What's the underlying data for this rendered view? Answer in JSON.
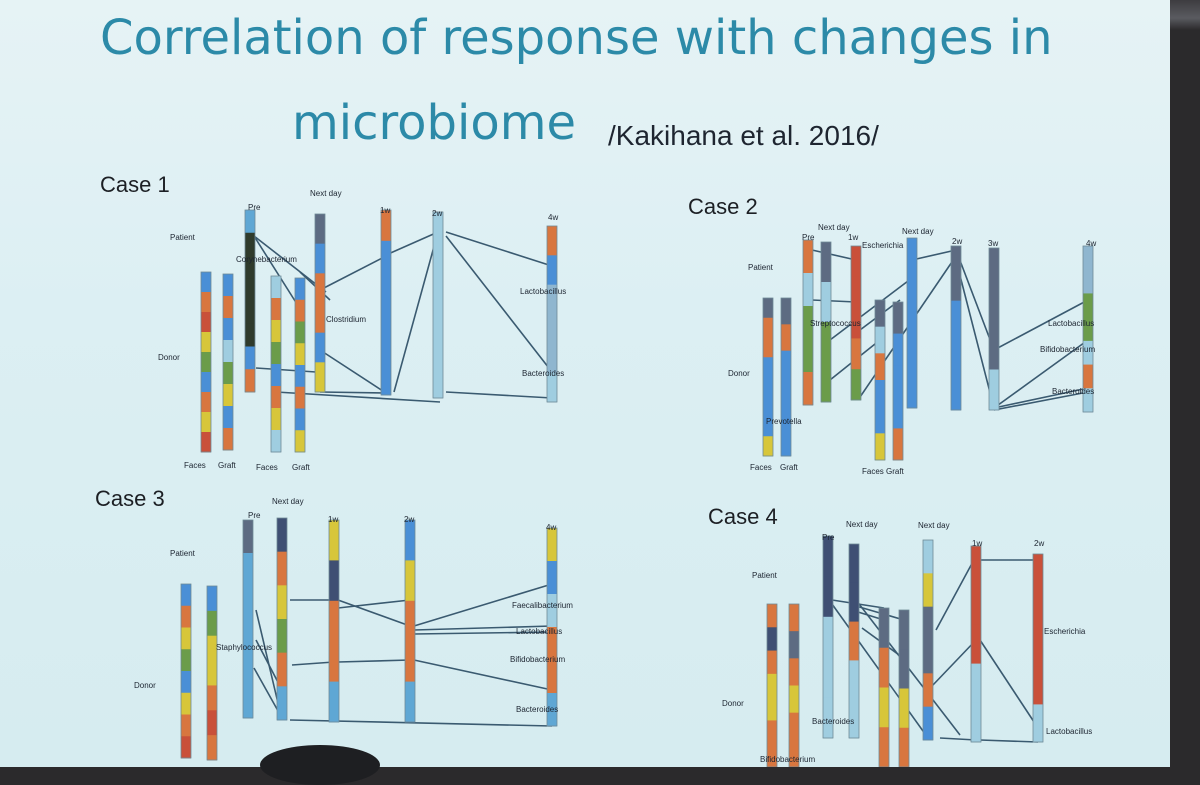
{
  "slide": {
    "title_line1": "Correlation of response with changes in",
    "title_line2": "microbiome",
    "citation": "/Kakihana et al. 2016/"
  },
  "colors": {
    "background": "#dceff3",
    "title": "#2c8aa8",
    "palette": {
      "B": "#4a8fd6",
      "L": "#9fcde0",
      "O": "#d8763f",
      "Y": "#d7c63a",
      "G": "#6b9c4a",
      "D": "#3f4f73",
      "K": "#2f3b2c",
      "S": "#5fa7d4",
      "R": "#c9503a",
      "T": "#5d6b82",
      "P": "#8fb6cf"
    }
  },
  "chart_data": [
    {
      "type": "bar",
      "title": "Case 1",
      "labels": [
        {
          "text": "Patient"
        },
        {
          "text": "Donor"
        },
        {
          "text": "Pre"
        },
        {
          "text": "Next day"
        },
        {
          "text": "1w"
        },
        {
          "text": "2w"
        },
        {
          "text": "4w"
        },
        {
          "text": "Faces"
        },
        {
          "text": "Graft"
        },
        {
          "text": "Faces"
        },
        {
          "text": "Graft"
        },
        {
          "text": "Corynebacterium"
        },
        {
          "text": "Clostridium"
        },
        {
          "text": "Lactobacillus"
        },
        {
          "text": "Bacteroides"
        }
      ]
    },
    {
      "type": "bar",
      "title": "Case 2",
      "labels": [
        {
          "text": "Patient"
        },
        {
          "text": "Donor"
        },
        {
          "text": "Pre"
        },
        {
          "text": "Next day"
        },
        {
          "text": "1w"
        },
        {
          "text": "Next day"
        },
        {
          "text": "2w"
        },
        {
          "text": "3w"
        },
        {
          "text": "4w"
        },
        {
          "text": "Faces"
        },
        {
          "text": "Graft"
        },
        {
          "text": "Faces"
        },
        {
          "text": "Graft"
        },
        {
          "text": "Escherichia"
        },
        {
          "text": "Streptococcus"
        },
        {
          "text": "Prevotella"
        },
        {
          "text": "Lactobacillus"
        },
        {
          "text": "Bifidobacterium"
        },
        {
          "text": "Bacteroides"
        }
      ]
    },
    {
      "type": "bar",
      "title": "Case 3",
      "labels": [
        {
          "text": "Patient"
        },
        {
          "text": "Donor"
        },
        {
          "text": "Pre"
        },
        {
          "text": "Next day"
        },
        {
          "text": "1w"
        },
        {
          "text": "2w"
        },
        {
          "text": "4w"
        },
        {
          "text": "Staphylococcus"
        },
        {
          "text": "Faecalibacterium"
        },
        {
          "text": "Lactobacillus"
        },
        {
          "text": "Bifidobacterium"
        },
        {
          "text": "Bacteroides"
        }
      ]
    },
    {
      "type": "bar",
      "title": "Case 4",
      "labels": [
        {
          "text": "Patient"
        },
        {
          "text": "Donor"
        },
        {
          "text": "Pre"
        },
        {
          "text": "Next day"
        },
        {
          "text": "Next day"
        },
        {
          "text": "1w"
        },
        {
          "text": "2w"
        },
        {
          "text": "Bacteroides"
        },
        {
          "text": "Bifidobacterium"
        },
        {
          "text": "Escherichia"
        },
        {
          "text": "Lactobacillus"
        }
      ]
    }
  ]
}
